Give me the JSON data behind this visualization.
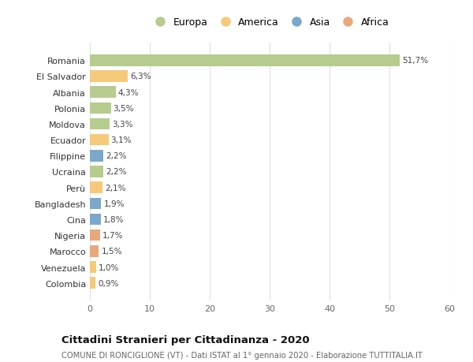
{
  "countries": [
    "Romania",
    "El Salvador",
    "Albania",
    "Polonia",
    "Moldova",
    "Ecuador",
    "Filippine",
    "Ucraina",
    "Perù",
    "Bangladesh",
    "Cina",
    "Nigeria",
    "Marocco",
    "Venezuela",
    "Colombia"
  ],
  "values": [
    51.7,
    6.3,
    4.3,
    3.5,
    3.3,
    3.1,
    2.2,
    2.2,
    2.1,
    1.9,
    1.8,
    1.7,
    1.5,
    1.0,
    0.9
  ],
  "labels": [
    "51,7%",
    "6,3%",
    "4,3%",
    "3,5%",
    "3,3%",
    "3,1%",
    "2,2%",
    "2,2%",
    "2,1%",
    "1,9%",
    "1,8%",
    "1,7%",
    "1,5%",
    "1,0%",
    "0,9%"
  ],
  "continents": [
    "Europa",
    "America",
    "Europa",
    "Europa",
    "Europa",
    "America",
    "Asia",
    "Europa",
    "America",
    "Asia",
    "Asia",
    "Africa",
    "Africa",
    "America",
    "America"
  ],
  "colors": {
    "Europa": "#b5cc8e",
    "America": "#f5c97a",
    "Asia": "#7ba7c9",
    "Africa": "#e8a87c"
  },
  "xlim": [
    0,
    60
  ],
  "xticks": [
    0,
    10,
    20,
    30,
    40,
    50,
    60
  ],
  "title": "Cittadini Stranieri per Cittadinanza - 2020",
  "subtitle": "COMUNE DI RONCIGLIONE (VT) - Dati ISTAT al 1° gennaio 2020 - Elaborazione TUTTITALIA.IT",
  "background_color": "#ffffff",
  "grid_color": "#e0e0e0"
}
